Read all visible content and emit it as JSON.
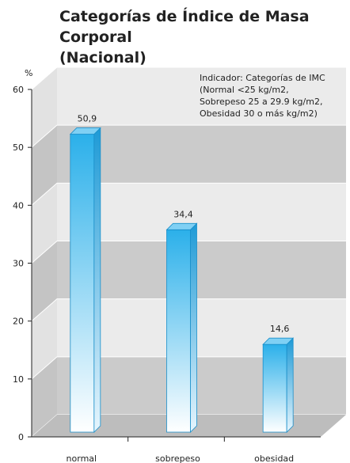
{
  "chart_data": {
    "type": "bar",
    "title": "Categorías de Índice de Masa Corporal\n(Nacional)",
    "ylabel": "%",
    "ylim": [
      0,
      60
    ],
    "yticks": [
      0,
      10,
      20,
      30,
      40,
      50,
      60
    ],
    "categories": [
      "normal",
      "sobrepeso",
      "obesidad"
    ],
    "values": [
      50.9,
      34.4,
      14.6
    ],
    "value_labels": [
      "50,9",
      "34,4",
      "14,6"
    ],
    "annotation": [
      "Indicador: Categorías de IMC",
      "(Normal <25 kg/m2,",
      "Sobrepeso 25 a 29.9 kg/m2,",
      "Obesidad 30 o más kg/m2)"
    ],
    "grid": true,
    "legend": "none",
    "style": "3d",
    "bar_color_top": "#2bb0ea",
    "bar_color_bottom": "#ffffff"
  }
}
